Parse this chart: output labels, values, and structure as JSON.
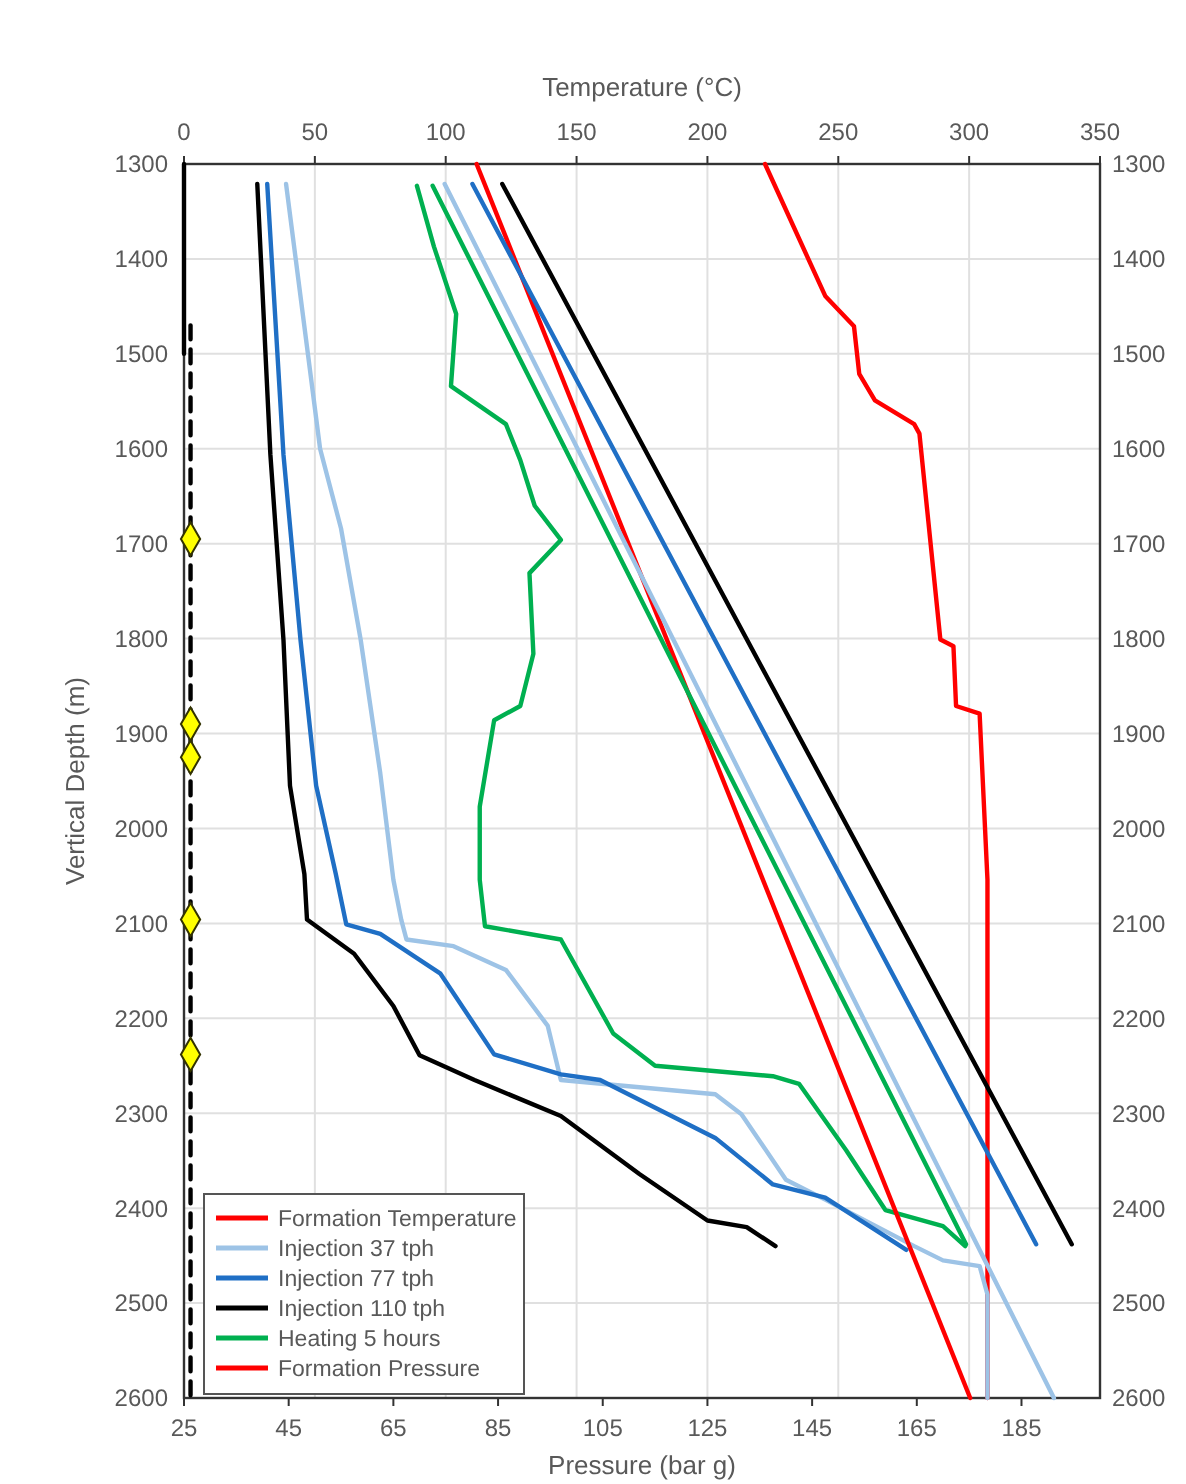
{
  "chart_data": {
    "type": "line",
    "xlabel": "Pressure (bar g)",
    "x2label": "Temperature (°C)",
    "ylabel": "Vertical Depth (m)",
    "xlim": [
      25,
      200
    ],
    "xticks": [
      25,
      45,
      65,
      85,
      105,
      125,
      145,
      165,
      185
    ],
    "x2lim": [
      0,
      350
    ],
    "x2ticks": [
      0,
      50,
      100,
      150,
      200,
      250,
      300,
      350
    ],
    "ylim": [
      2600,
      1300
    ],
    "yticks": [
      1300,
      1400,
      1500,
      1600,
      1700,
      1800,
      1900,
      2000,
      2100,
      2200,
      2300,
      2400,
      2500,
      2600
    ],
    "y2lim": [
      2600,
      1300
    ],
    "y2ticks": [
      1300,
      1400,
      1500,
      1600,
      1700,
      1800,
      1900,
      2000,
      2100,
      2200,
      2300,
      2400,
      2500,
      2600
    ],
    "grid": true,
    "legend": "bottom left",
    "marker": "none",
    "line_style": "solid",
    "series": [
      {
        "name": "Formation Temperature",
        "color": "#ff0000",
        "axis": "x2",
        "x": [
          222,
          245,
          256,
          258,
          264,
          279,
          281,
          289,
          294,
          295,
          304,
          307,
          307
        ],
        "values": [
          1300,
          1439,
          1471,
          1521,
          1549,
          1574,
          1584,
          1801,
          1808,
          1871,
          1879,
          2054,
          2600
        ]
      },
      {
        "name": "Injection 37 tph",
        "color": "#9dc3e6",
        "axis": "x2",
        "x": [
          39,
          52,
          60,
          67.5,
          75,
          80,
          83,
          85,
          103,
          123,
          139,
          144,
          203,
          213,
          230,
          245,
          279,
          290,
          304,
          307,
          307
        ],
        "values": [
          1321,
          1600,
          1684,
          1801,
          1942,
          2054,
          2096,
          2117,
          2124,
          2149,
          2208,
          2265,
          2280,
          2301,
          2370,
          2391,
          2440,
          2455,
          2461,
          2491,
          2600
        ]
      },
      {
        "name": "Injection 77 tph",
        "color": "#1f6fc5",
        "axis": "x2",
        "x": [
          31.8,
          38,
          44.5,
          50.5,
          58,
          62,
          75,
          98,
          118.5,
          144,
          159,
          203,
          225,
          245,
          276
        ],
        "values": [
          1321,
          1606,
          1801,
          1955,
          2048,
          2101,
          2111,
          2153,
          2238,
          2259,
          2265,
          2326,
          2375,
          2389,
          2444
        ]
      },
      {
        "name": "Injection 110 tph",
        "color": "#000000",
        "axis": "x2",
        "x": [
          28,
          33,
          38,
          40.5,
          46,
          47,
          65,
          80,
          90,
          111,
          144,
          174,
          200,
          215,
          226
        ],
        "values": [
          1321,
          1606,
          1801,
          1955,
          2048,
          2096,
          2132,
          2187,
          2239,
          2265,
          2303,
          2364,
          2413,
          2420,
          2440
        ]
      },
      {
        "name": "Heating 5 hours",
        "color": "#00b050",
        "axis": "x2",
        "x": [
          89,
          95.5,
          104,
          102,
          123,
          128.5,
          134,
          144,
          132,
          133.5,
          128.5,
          118.5,
          113,
          113,
          115,
          144,
          164,
          180,
          225,
          235,
          253,
          268,
          290,
          298.5
        ],
        "values": [
          1323,
          1387,
          1458,
          1534,
          1574,
          1612,
          1660,
          1696,
          1731,
          1816,
          1871,
          1886,
          1977,
          2054,
          2103,
          2117,
          2216,
          2250,
          2261,
          2269,
          2339,
          2402,
          2419,
          2440
        ]
      },
      {
        "name": "Formation Pressure",
        "color": "#ff0000",
        "x": [
          80.9,
          175.2
        ],
        "values": [
          1300,
          2600
        ]
      },
      {
        "color": "#9dc3e6",
        "x": [
          74.8,
          191.2
        ],
        "values": [
          1321,
          2600
        ]
      },
      {
        "color": "#1f6fc5",
        "x": [
          80.1,
          187.8
        ],
        "values": [
          1321,
          2438
        ]
      },
      {
        "color": "#000000",
        "x": [
          85.8,
          194.6
        ],
        "values": [
          1321,
          2438
        ]
      },
      {
        "color": "#00b050",
        "x": [
          72.5,
          174.4
        ],
        "values": [
          1323,
          2438
        ]
      },
      {
        "color": "#000000",
        "axis": "x2",
        "x": [
          0,
          0
        ],
        "values": [
          1300,
          1500
        ]
      },
      {
        "color": "#000000",
        "axis": "x2",
        "line_style": "dashed",
        "x": [
          2.5,
          2.5
        ],
        "values": [
          1470,
          2600
        ]
      },
      {
        "type": "scatter",
        "color": "#ffff00",
        "axis": "x2",
        "marker": "diamond",
        "x": [
          2.5,
          2.5,
          2.5,
          2.5,
          2.5
        ],
        "values": [
          1695,
          1890,
          1925,
          2096,
          2238
        ]
      }
    ]
  }
}
